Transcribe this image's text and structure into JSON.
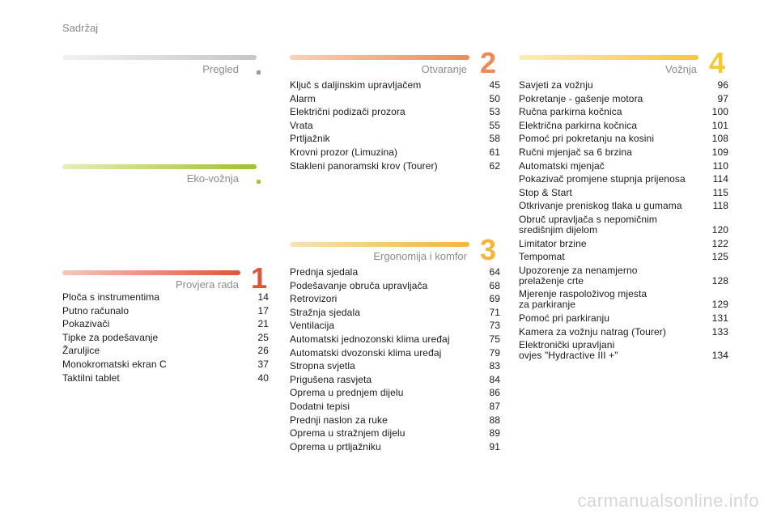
{
  "page_label": "Sadržaj",
  "sections": {
    "pregled": {
      "title": "Pregled",
      "color": "#c9c9c9"
    },
    "eko": {
      "title": "Eko-vožnja",
      "color": "#a8c636"
    },
    "provjera": {
      "title": "Provjera rada",
      "number": "1",
      "color": "#e0553a",
      "items": [
        {
          "title": "Ploča s instrumentima",
          "page": "14"
        },
        {
          "title": "Putno računalo",
          "page": "17"
        },
        {
          "title": "Pokazivači",
          "page": "21"
        },
        {
          "title": "Tipke za podešavanje",
          "page": "25"
        },
        {
          "title": "Žaruljice",
          "page": "26"
        },
        {
          "title": "Monokromatski ekran C",
          "page": "37"
        },
        {
          "title": "Taktilni tablet",
          "page": "40"
        }
      ]
    },
    "otvaranje": {
      "title": "Otvaranje",
      "number": "2",
      "color": "#ef8a55",
      "items": [
        {
          "title": "Ključ s daljinskim upravljačem",
          "page": "45"
        },
        {
          "title": "Alarm",
          "page": "50"
        },
        {
          "title": "Električni podizači prozora",
          "page": "53"
        },
        {
          "title": "Vrata",
          "page": "55"
        },
        {
          "title": "Prtljažnik",
          "page": "58"
        },
        {
          "title": "Krovni prozor (Limuzina)",
          "page": "61"
        },
        {
          "title": "Stakleni panoramski krov (Tourer)",
          "page": "62"
        }
      ]
    },
    "ergonomija": {
      "title": "Ergonomija i komfor",
      "number": "3",
      "color": "#f5b53a",
      "items": [
        {
          "title": "Prednja sjedala",
          "page": "64"
        },
        {
          "title": "Podešavanje obruča upravljača",
          "page": "68"
        },
        {
          "title": "Retrovizori",
          "page": "69"
        },
        {
          "title": "Stražnja sjedala",
          "page": "71"
        },
        {
          "title": "Ventilacija",
          "page": "73"
        },
        {
          "title": "Automatski jednozonski klima uređaj",
          "page": "75"
        },
        {
          "title": "Automatski dvozonski klima uređaj",
          "page": "79"
        },
        {
          "title": "Stropna svjetla",
          "page": "83"
        },
        {
          "title": "Prigušena rasvjeta",
          "page": "84"
        },
        {
          "title": "Oprema u prednjem dijelu",
          "page": "86"
        },
        {
          "title": "Dodatni tepisi",
          "page": "87"
        },
        {
          "title": "Prednji naslon za ruke",
          "page": "88"
        },
        {
          "title": "Oprema u stražnjem dijelu",
          "page": "89"
        },
        {
          "title": "Oprema u prtljažniku",
          "page": "91"
        }
      ]
    },
    "voznja": {
      "title": "Vožnja",
      "number": "4",
      "color": "#f3c93a",
      "items": [
        {
          "title": "Savjeti za vožnju",
          "page": "96"
        },
        {
          "title": "Pokretanje - gašenje motora",
          "page": "97"
        },
        {
          "title": "Ručna parkirna kočnica",
          "page": "100"
        },
        {
          "title": "Električna parkirna kočnica",
          "page": "101"
        },
        {
          "title": "Pomoć pri pokretanju na kosini",
          "page": "108"
        },
        {
          "title": "Ručni mjenjač sa 6 brzina",
          "page": "109"
        },
        {
          "title": "Automatski mjenjač",
          "page": "110"
        },
        {
          "title": "Pokazivač promjene stupnja prijenosa",
          "page": "114"
        },
        {
          "title": "Stop & Start",
          "page": "115"
        },
        {
          "title": "Otkrivanje preniskog tlaka u gumama",
          "page": "118"
        },
        {
          "title": "Obruč upravljača s nepomičnim\nsredišnjim dijelom",
          "page": "120"
        },
        {
          "title": "Limitator brzine",
          "page": "122"
        },
        {
          "title": "Tempomat",
          "page": "125"
        },
        {
          "title": "Upozorenje za nenamjerno\nprelaženje crte",
          "page": "128"
        },
        {
          "title": "Mjerenje raspoloživog mjesta\nza parkiranje",
          "page": "129"
        },
        {
          "title": "Pomoć pri parkiranju",
          "page": "131"
        },
        {
          "title": "Kamera za vožnju natrag (Tourer)",
          "page": "133"
        },
        {
          "title": "Elektronički upravljani\novjes \"Hydractive III +\"",
          "page": "134"
        }
      ]
    }
  },
  "watermark": "carmanualsonline.info"
}
